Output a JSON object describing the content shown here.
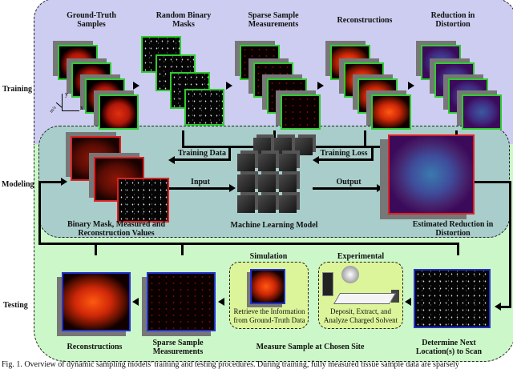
{
  "rows": {
    "training": "Training",
    "modeling": "Modeling",
    "testing": "Testing"
  },
  "training": {
    "ground_truth": "Ground-Truth Samples",
    "masks": "Random Binary Masks",
    "sparse": "Sparse Sample Measurements",
    "reconstructions": "Reconstructions",
    "reduction": "Reduction in Distortion",
    "axes": {
      "y": "y",
      "x": "x",
      "z": "m/z"
    }
  },
  "modeling": {
    "training_data": "Training Data",
    "training_loss": "Training Loss",
    "input": "Input",
    "output": "Output",
    "inputs_label": "Binary Mask, Measured and Reconstruction Values",
    "model_label": "Machine Learning Model",
    "estimate_label": "Estimated Reduction in Distortion"
  },
  "testing": {
    "simulation": "Simulation",
    "simulation_text": "Retrieve the Information from Ground-Truth Data",
    "experimental": "Experimental",
    "experimental_text": "Deposit, Extract, and Analyze Charged Solvent",
    "reconstructions": "Reconstructions",
    "sparse": "Sparse Sample Measurements",
    "measure": "Measure Sample at Chosen Site",
    "next": "Determine Next Location(s) to Scan"
  },
  "caption": "Fig. 1. Overview of dynamic sampling models' training and testing procedures. During training, fully measured tissue sample data are sparsely",
  "colors": {
    "training_bg": "#cccdf0",
    "modeling_bg": "#a9cdca",
    "testing_bg": "#ccf7c8",
    "train_frame": "#2ecc2e",
    "model_frame": "#e02020",
    "test_frame": "#2233cc"
  }
}
